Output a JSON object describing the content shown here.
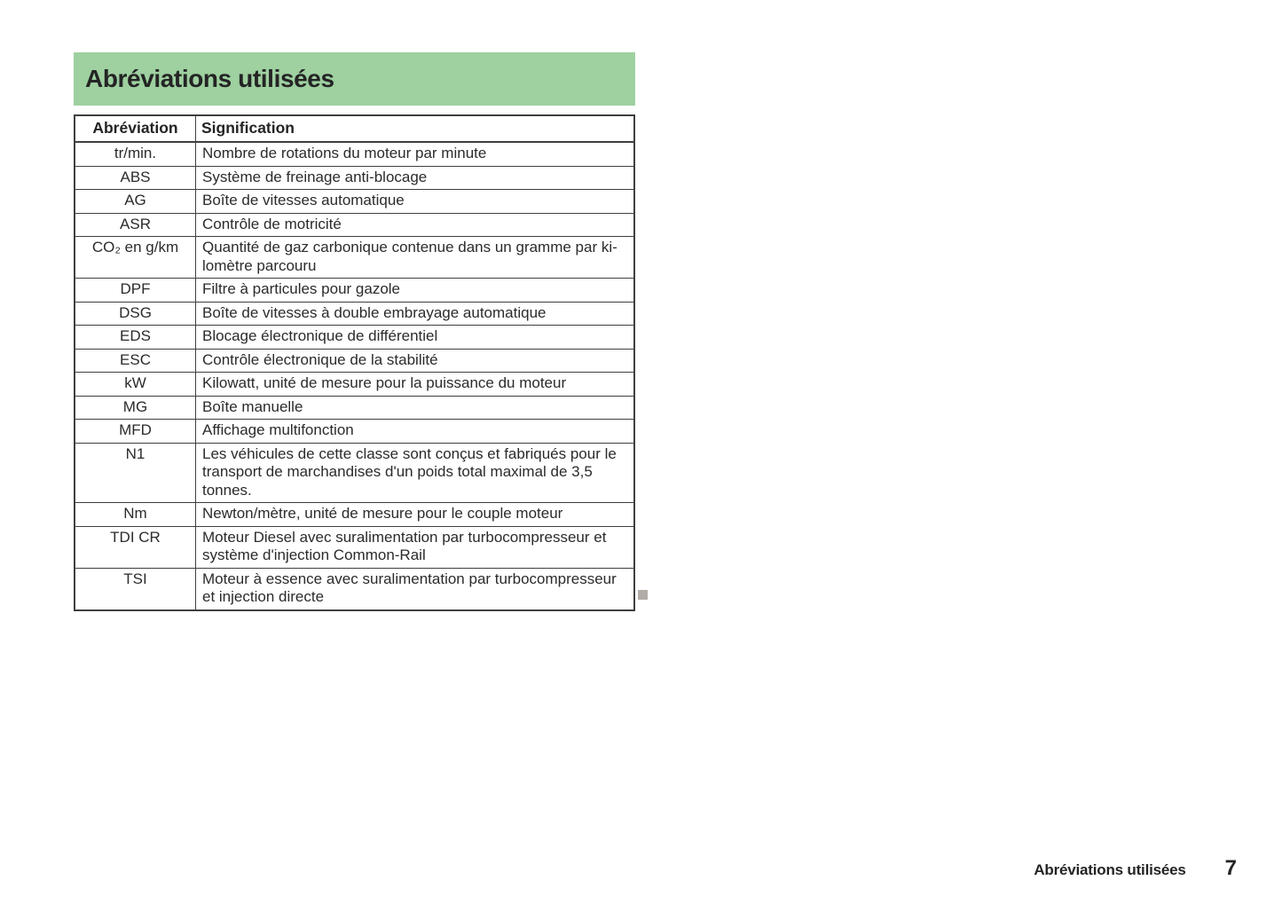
{
  "page": {
    "title": "Abréviations utilisées",
    "footer": {
      "section_label": "Abréviations utilisées",
      "page_number": "7"
    },
    "colors": {
      "title_bar_green": "#9ed0a0",
      "table_border": "#3f3f3f",
      "text": "#2b2b2b",
      "end_marker_gray": "#b2aca7"
    }
  },
  "table": {
    "columns": [
      "Abréviation",
      "Signification"
    ],
    "rows": [
      {
        "abbr": "tr/min.",
        "meaning": "Nombre de rotations du moteur par minute"
      },
      {
        "abbr": "ABS",
        "meaning": "Système de freinage anti-blocage"
      },
      {
        "abbr": "AG",
        "meaning": "Boîte de vitesses automatique"
      },
      {
        "abbr": "ASR",
        "meaning": "Contrôle de motricité"
      },
      {
        "abbr": "CO₂ en g/km",
        "meaning": "Quantité de gaz carbonique contenue dans un gramme par ki­lomètre parcouru"
      },
      {
        "abbr": "DPF",
        "meaning": "Filtre à particules pour gazole"
      },
      {
        "abbr": "DSG",
        "meaning": "Boîte de vitesses à double embrayage automatique"
      },
      {
        "abbr": "EDS",
        "meaning": "Blocage électronique de différentiel"
      },
      {
        "abbr": "ESC",
        "meaning": "Contrôle électronique de la stabilité"
      },
      {
        "abbr": "kW",
        "meaning": "Kilowatt, unité de mesure pour la puissance du moteur"
      },
      {
        "abbr": "MG",
        "meaning": "Boîte manuelle"
      },
      {
        "abbr": "MFD",
        "meaning": "Affichage multifonction"
      },
      {
        "abbr": "N1",
        "meaning": "Les véhicules de cette classe sont conçus et fabriqués pour le transport de marchandises d'un poids total maximal de 3,5 tonnes."
      },
      {
        "abbr": "Nm",
        "meaning": "Newton/mètre, unité de mesure pour le couple moteur"
      },
      {
        "abbr": "TDI CR",
        "meaning": "Moteur Diesel avec suralimentation par turbocompresseur et système d'injection Common-Rail"
      },
      {
        "abbr": "TSI",
        "meaning": "Moteur à essence avec suralimentation par turbocompresseur et injection directe"
      }
    ]
  }
}
